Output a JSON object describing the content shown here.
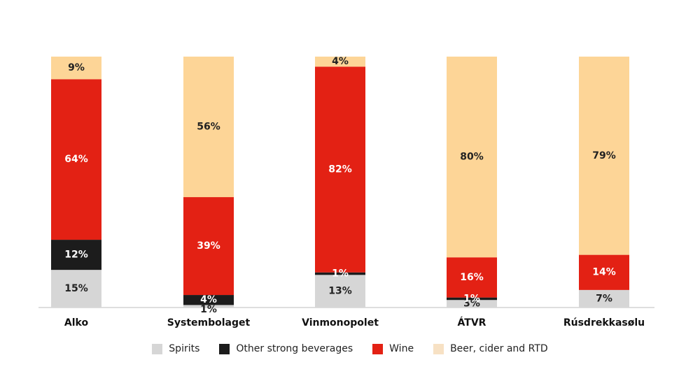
{
  "chart_data": {
    "type": "bar",
    "stacked": true,
    "orientation": "vertical",
    "categories": [
      "Alko",
      "Systembolaget",
      "Vinmonopolet",
      "ÁTVR",
      "Rúsdrekkasølu"
    ],
    "series": [
      {
        "name": "Spirits",
        "color": "#d6d6d6",
        "label_color": "#222222",
        "values": [
          15,
          1,
          13,
          3,
          7
        ],
        "labels": [
          "15%",
          "1%",
          "13%",
          "3%",
          "7%"
        ]
      },
      {
        "name": "Other strong beverages",
        "color": "#1c1c1c",
        "label_color": "#ffffff",
        "values": [
          12,
          4,
          1,
          1,
          0
        ],
        "labels": [
          "12%",
          "4%",
          "1%",
          "1%",
          ""
        ]
      },
      {
        "name": "Wine",
        "color": "#e32114",
        "label_color": "#ffffff",
        "values": [
          64,
          39,
          82,
          16,
          14
        ],
        "labels": [
          "64%",
          "39%",
          "82%",
          "16%",
          "14%"
        ]
      },
      {
        "name": "Beer, cider and RTD",
        "color": "#fdd597",
        "label_color": "#222222",
        "values": [
          9,
          56,
          4,
          80,
          79
        ],
        "labels": [
          "9%",
          "56%",
          "4%",
          "80%",
          "79%"
        ]
      }
    ],
    "ylim": [
      0,
      100
    ],
    "grid": false,
    "legend_position": "bottom"
  },
  "legend": {
    "items": [
      {
        "label": "Spirits",
        "color": "#d6d6d6"
      },
      {
        "label": "Other strong beverages",
        "color": "#1c1c1c"
      },
      {
        "label": "Wine",
        "color": "#e32114"
      },
      {
        "label": "Beer, cider and RTD",
        "color": "#f7e1c4"
      }
    ]
  }
}
